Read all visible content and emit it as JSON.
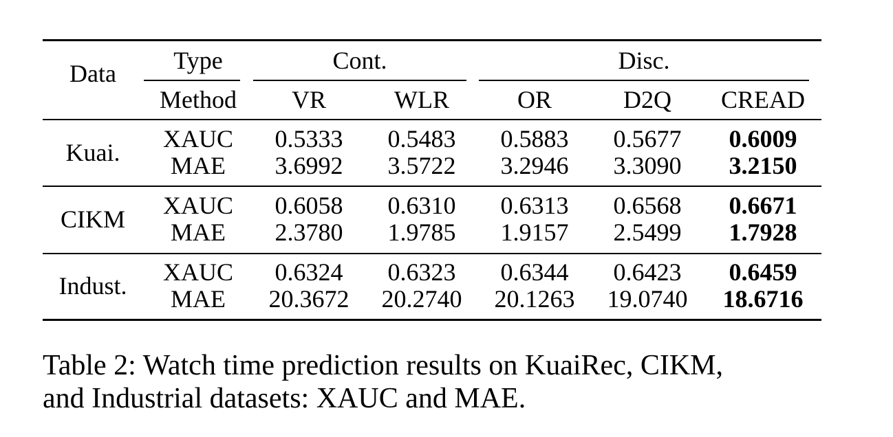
{
  "header": {
    "data_label": "Data",
    "type_label": "Type",
    "method_label": "Method",
    "groups": [
      "Cont.",
      "Disc."
    ],
    "methods": [
      "VR",
      "WLR",
      "OR",
      "D2Q",
      "CREAD"
    ]
  },
  "rows": [
    {
      "dataset": "Kuai.",
      "metrics": [
        {
          "name": "XAUC",
          "values": [
            "0.5333",
            "0.5483",
            "0.5883",
            "0.5677",
            "0.6009"
          ]
        },
        {
          "name": "MAE",
          "values": [
            "3.6992",
            "3.5722",
            "3.2946",
            "3.3090",
            "3.2150"
          ]
        }
      ]
    },
    {
      "dataset": "CIKM",
      "metrics": [
        {
          "name": "XAUC",
          "values": [
            "0.6058",
            "0.6310",
            "0.6313",
            "0.6568",
            "0.6671"
          ]
        },
        {
          "name": "MAE",
          "values": [
            "2.3780",
            "1.9785",
            "1.9157",
            "2.5499",
            "1.7928"
          ]
        }
      ]
    },
    {
      "dataset": "Indust.",
      "metrics": [
        {
          "name": "XAUC",
          "values": [
            "0.6324",
            "0.6323",
            "0.6344",
            "0.6423",
            "0.6459"
          ]
        },
        {
          "name": "MAE",
          "values": [
            "20.3672",
            "20.2740",
            "20.1263",
            "19.0740",
            "18.6716"
          ]
        }
      ]
    }
  ],
  "bold_column": "CREAD",
  "caption": {
    "line1": "Table 2: Watch time prediction results on KuaiRec, CIKM,",
    "line2": "and Industrial datasets: XAUC and MAE."
  }
}
